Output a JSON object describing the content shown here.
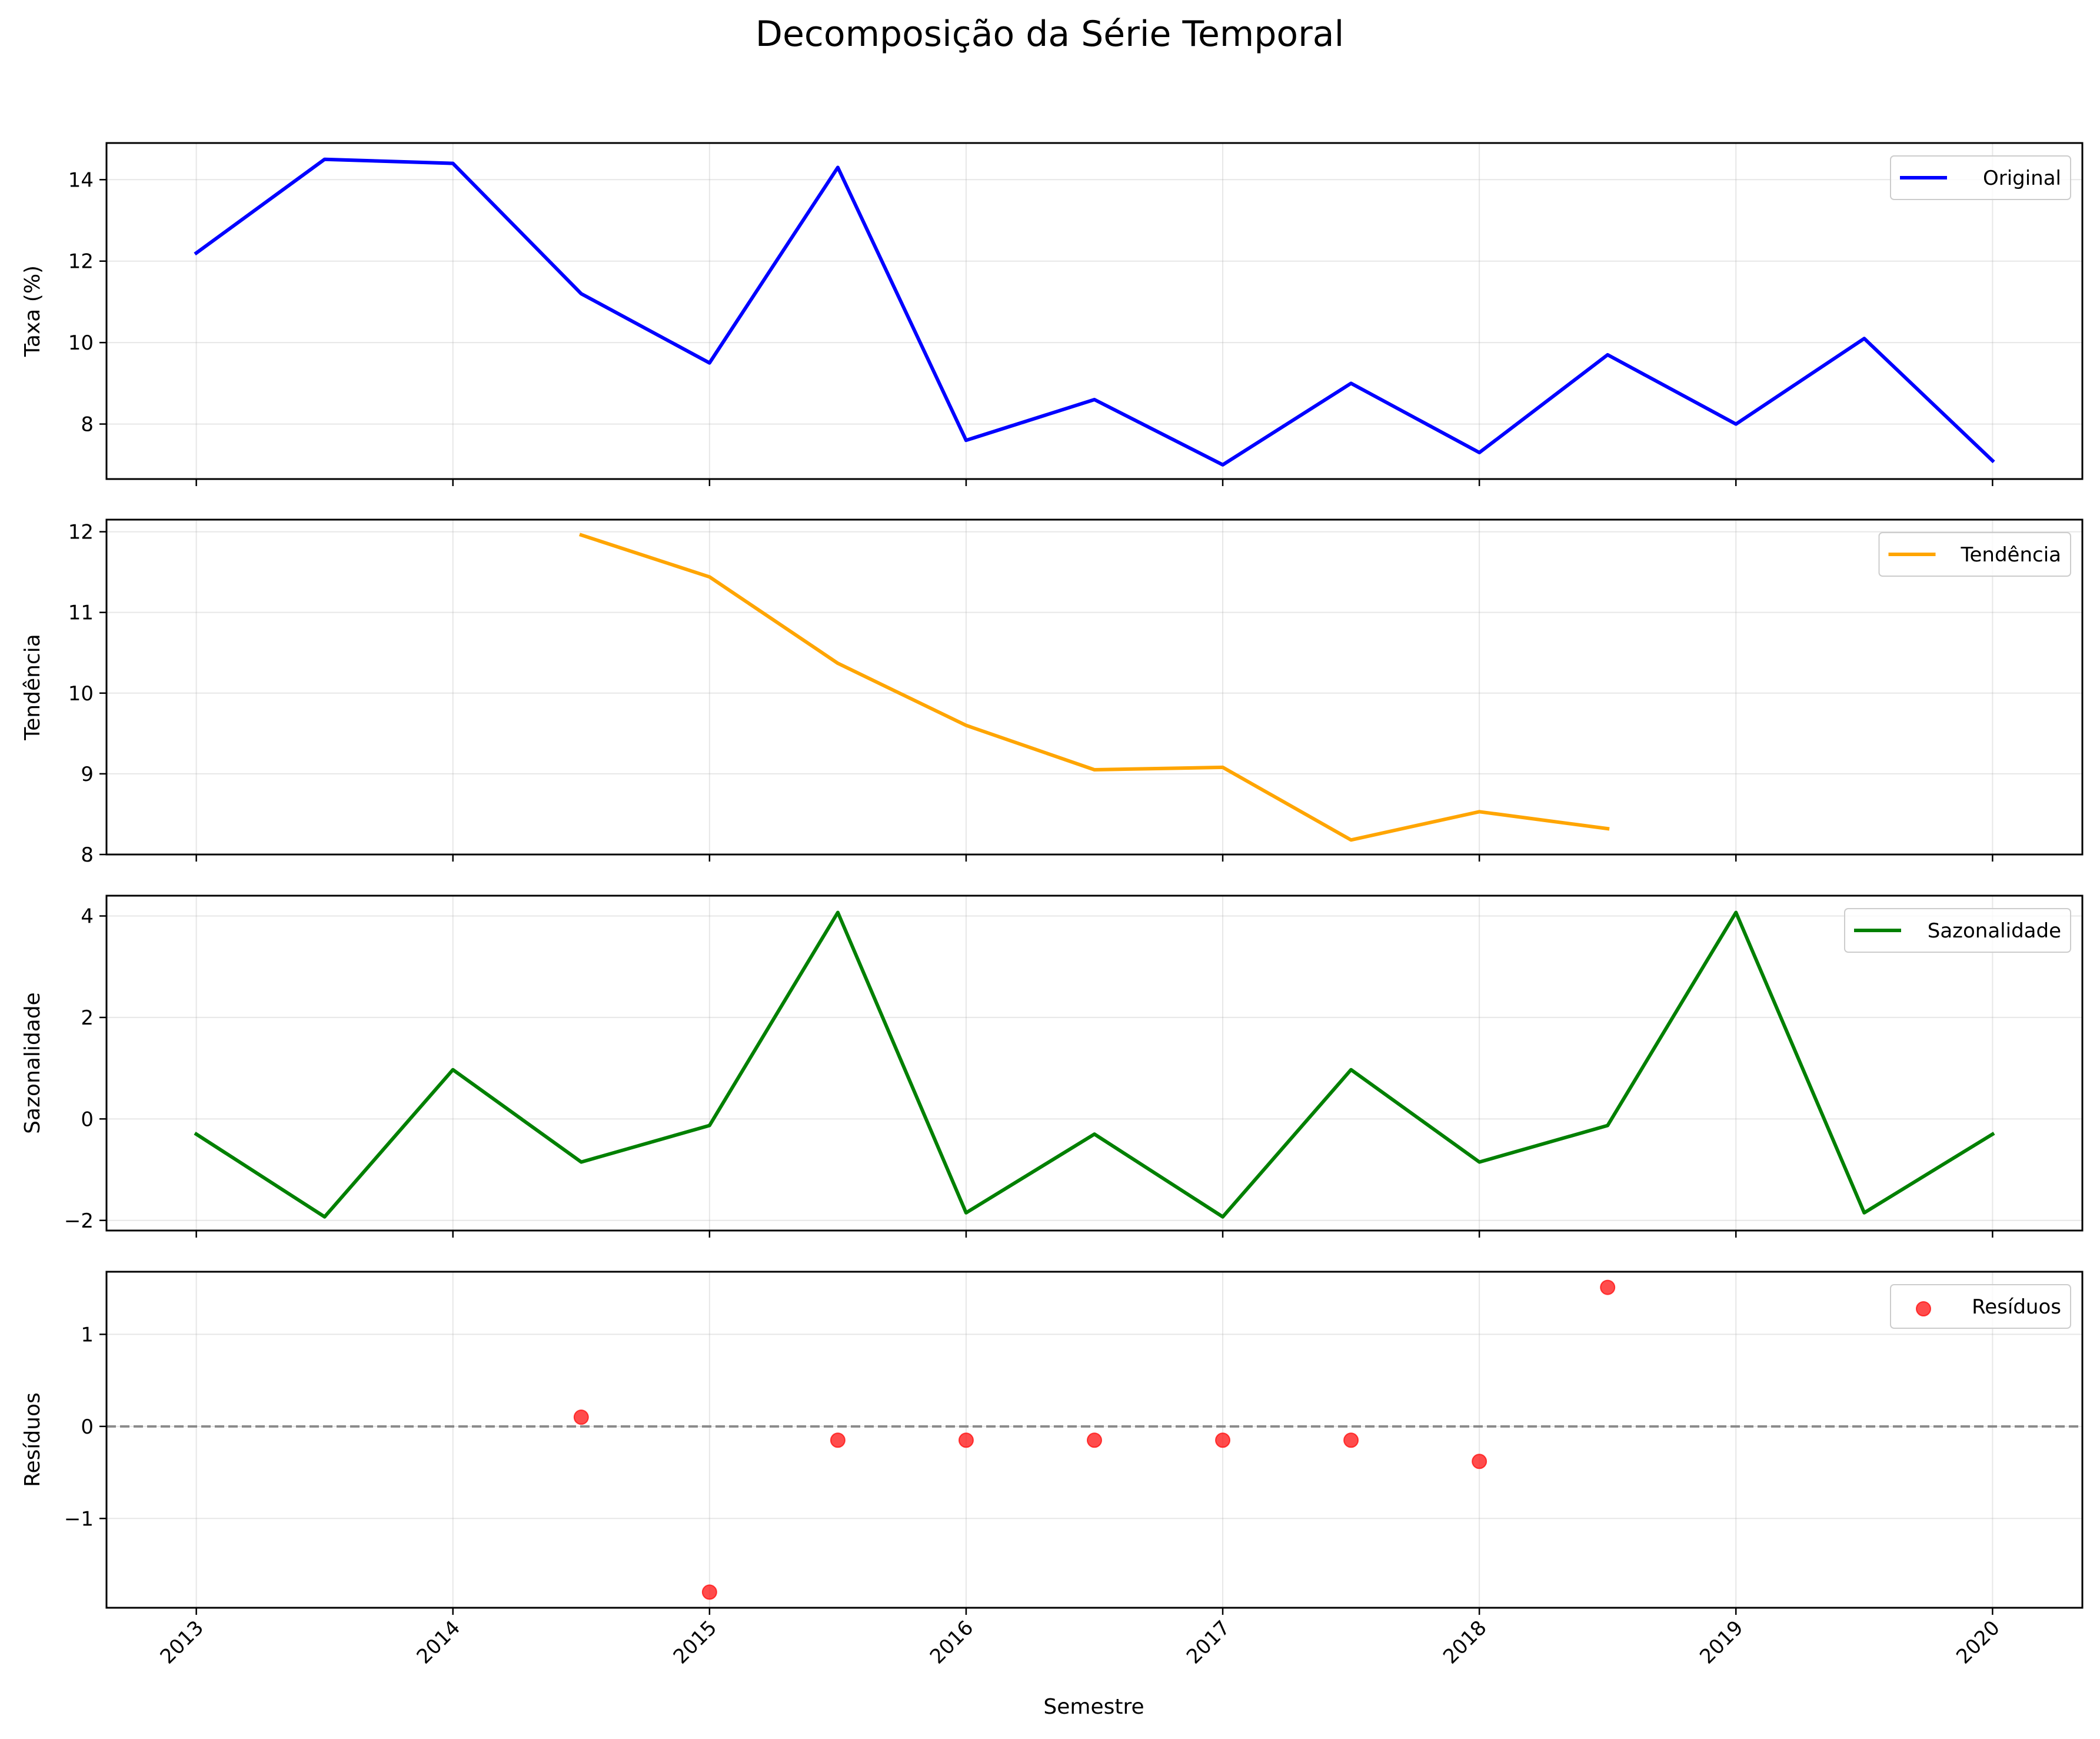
{
  "figure": {
    "title": "Decomposição da Série Temporal",
    "xlabel": "Semestre",
    "x_tick_labels": [
      "2013",
      "2014",
      "2015",
      "2016",
      "2017",
      "2018",
      "2019",
      "2020"
    ]
  },
  "chart_data": [
    {
      "type": "line",
      "ylabel": "Taxa (%)",
      "legend": "Original",
      "legend_position": "top-right",
      "color": "#0000ff",
      "grid": true,
      "xlim": [
        2012.65,
        2020.35
      ],
      "ylim": [
        6.65,
        14.9
      ],
      "yticks": [
        8,
        10,
        12,
        14
      ],
      "x": [
        2013.0,
        2013.5,
        2014.0,
        2014.5,
        2015.0,
        2015.5,
        2016.0,
        2016.5,
        2017.0,
        2017.5,
        2018.0,
        2018.5,
        2019.0,
        2019.5,
        2020.0
      ],
      "y": [
        12.2,
        14.5,
        14.4,
        11.2,
        9.5,
        14.3,
        7.6,
        8.6,
        7.0,
        9.0,
        7.3,
        9.7,
        8.0,
        10.1,
        7.1
      ]
    },
    {
      "type": "line",
      "ylabel": "Tendência",
      "legend": "Tendência",
      "legend_position": "top-right",
      "color": "#ffa500",
      "grid": true,
      "xlim": [
        2012.65,
        2020.35
      ],
      "ylim": [
        8.0,
        12.15
      ],
      "yticks": [
        8,
        9,
        10,
        11,
        12
      ],
      "x": [
        2014.5,
        2015.0,
        2015.5,
        2016.0,
        2016.5,
        2017.0,
        2017.5,
        2018.0,
        2018.5
      ],
      "y": [
        11.96,
        11.44,
        10.37,
        9.6,
        9.05,
        9.08,
        8.18,
        8.53,
        8.32
      ]
    },
    {
      "type": "line",
      "ylabel": "Sazonalidade",
      "legend": "Sazonalidade",
      "legend_position": "top-right",
      "color": "#008000",
      "grid": true,
      "xlim": [
        2012.65,
        2020.35
      ],
      "ylim": [
        -2.2,
        4.4
      ],
      "yticks": [
        -2,
        0,
        2,
        4
      ],
      "x": [
        2013.0,
        2013.5,
        2014.0,
        2014.5,
        2015.0,
        2015.5,
        2016.0,
        2016.5,
        2017.0,
        2017.5,
        2018.0,
        2018.5,
        2019.0,
        2019.5,
        2020.0
      ],
      "y": [
        -0.3,
        -1.93,
        0.97,
        -0.85,
        -0.13,
        4.07,
        -1.85,
        -0.3,
        -1.93,
        0.97,
        -0.85,
        -0.13,
        4.07,
        -1.85,
        -0.3
      ]
    },
    {
      "type": "scatter",
      "ylabel": "Resíduos",
      "legend": "Resíduos",
      "legend_position": "top-right",
      "color": "#ff0000",
      "reference_line": 0,
      "grid": true,
      "xlim": [
        2012.65,
        2020.35
      ],
      "ylim": [
        -1.97,
        1.68
      ],
      "yticks": [
        -1,
        0,
        1
      ],
      "x": [
        2014.5,
        2015.0,
        2015.5,
        2016.0,
        2016.5,
        2017.0,
        2017.5,
        2018.0,
        2018.5
      ],
      "y": [
        0.1,
        -1.8,
        -0.15,
        -0.15,
        -0.15,
        -0.15,
        -0.15,
        -0.38,
        1.51
      ]
    }
  ]
}
